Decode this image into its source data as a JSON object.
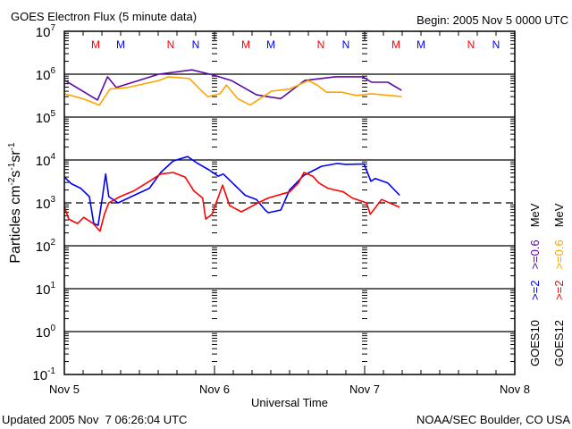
{
  "header": {
    "title": "GOES Electron Flux (5 minute data)",
    "begin": "Begin: 2005 Nov 5 0000 UTC"
  },
  "footer": {
    "updated": "Updated 2005 Nov  7 06:26:04 UTC",
    "source": "NOAA/SEC Boulder, CO USA"
  },
  "legend": {
    "goes10": {
      "sat": "GOES10",
      "e2": ">=2",
      "e06": ">=0.6",
      "unit": "MeV"
    },
    "goes12": {
      "sat": "GOES12",
      "e2": ">=2",
      "e06": ">=0.6",
      "unit": "MeV"
    }
  },
  "colors": {
    "goes10_2": "#0000ff",
    "goes10_06": "#5a0aa8",
    "goes12_2": "#ff0000",
    "goes12_06": "#ffa500"
  },
  "chart_data": {
    "type": "line",
    "title": "GOES Electron Flux (5 minute data)",
    "xlabel": "Universal Time",
    "ylabel": "Particles cm-2s-1sr-1",
    "ylabel_parts": {
      "a": "Particles cm",
      "b": "-2",
      "c": "s",
      "d": "-1",
      "e": "sr",
      "f": "-1"
    },
    "x_unit": "hours since 2005 Nov 5 0000 UTC",
    "xlim": [
      0,
      72
    ],
    "ylim": [
      0.1,
      10000000
    ],
    "yscale": "log",
    "x_ticks": [
      {
        "h": 0,
        "label": "Nov 5"
      },
      {
        "h": 24,
        "label": "Nov 6"
      },
      {
        "h": 48,
        "label": "Nov 7"
      },
      {
        "h": 72,
        "label": "Nov 8"
      }
    ],
    "y_tick_exponents": [
      "7",
      "6",
      "5",
      "4",
      "3",
      "2",
      "1",
      "0",
      "-1"
    ],
    "threshold_line": 1000,
    "markers": [
      {
        "h": 5,
        "label": "M",
        "color": "#ff0000"
      },
      {
        "h": 9,
        "label": "M",
        "color": "#0000ff"
      },
      {
        "h": 17,
        "label": "N",
        "color": "#ff0000"
      },
      {
        "h": 21,
        "label": "N",
        "color": "#0000ff"
      },
      {
        "h": 29,
        "label": "M",
        "color": "#ff0000"
      },
      {
        "h": 33,
        "label": "M",
        "color": "#0000ff"
      },
      {
        "h": 41,
        "label": "N",
        "color": "#ff0000"
      },
      {
        "h": 45,
        "label": "N",
        "color": "#0000ff"
      },
      {
        "h": 53,
        "label": "M",
        "color": "#ff0000"
      },
      {
        "h": 57,
        "label": "M",
        "color": "#0000ff"
      },
      {
        "h": 65,
        "label": "N",
        "color": "#ff0000"
      },
      {
        "h": 69,
        "label": "N",
        "color": "#0000ff"
      }
    ],
    "series": [
      {
        "name": "GOES10 >=0.6 MeV",
        "color": "#5a0aa8",
        "x": [
          0.1,
          5.3,
          6.9,
          8.3,
          15.1,
          20.4,
          23.9,
          26.7,
          30.7,
          33.1,
          34.6,
          38.4,
          43.3,
          47.7,
          49.1,
          51.7,
          53.9
        ],
        "y": [
          710000,
          250000,
          870000,
          490000,
          1000000,
          1260000,
          950000,
          710000,
          330000,
          290000,
          270000,
          710000,
          870000,
          870000,
          650000,
          650000,
          420000
        ]
      },
      {
        "name": "GOES12 >=0.6 MeV",
        "color": "#ffa500",
        "x": [
          0,
          2.9,
          5.6,
          7.3,
          10.1,
          15.1,
          16.6,
          20,
          21.4,
          22.9,
          24.9,
          25.9,
          27.7,
          29.7,
          33.1,
          36,
          39,
          40.4,
          41.9,
          44.3,
          46.7,
          49.1,
          53.9
        ],
        "y": [
          350000,
          270000,
          190000,
          450000,
          490000,
          710000,
          870000,
          790000,
          490000,
          300000,
          350000,
          560000,
          270000,
          190000,
          400000,
          450000,
          710000,
          560000,
          380000,
          380000,
          320000,
          350000,
          300000
        ]
      },
      {
        "name": "GOES10 >=2 MeV",
        "color": "#0000ff",
        "x": [
          0,
          1.1,
          2.6,
          4,
          4.7,
          5.4,
          6.1,
          6.6,
          7.1,
          8.6,
          10.7,
          13.6,
          15.4,
          17.4,
          19.7,
          21.1,
          23.1,
          24.6,
          25.4,
          26.9,
          28.9,
          30.7,
          32.1,
          32.6,
          34.6,
          36,
          38.3,
          41.1,
          43.6,
          45,
          47.9,
          49,
          49.7,
          51.7,
          53.6
        ],
        "y": [
          4000,
          2800,
          2200,
          1400,
          330,
          300,
          1400,
          4700,
          1400,
          1000,
          1400,
          2200,
          5100,
          9500,
          12000,
          8700,
          5900,
          4200,
          4700,
          2900,
          1500,
          1200,
          680,
          590,
          680,
          2000,
          4400,
          7100,
          8300,
          7900,
          8100,
          3200,
          3700,
          2900,
          1500
        ]
      },
      {
        "name": "GOES12 >=2 MeV",
        "color": "#ff0000",
        "x": [
          0,
          0.7,
          2.1,
          3.1,
          4.6,
          5.7,
          6.4,
          7.1,
          8.9,
          11.1,
          13.6,
          15.4,
          17.4,
          19.3,
          20.7,
          22.1,
          22.6,
          23.6,
          25.3,
          26.4,
          28.3,
          30.7,
          32.6,
          36,
          37.4,
          38.3,
          39.7,
          40.7,
          42.1,
          44.6,
          46,
          48.3,
          48.9,
          50.7,
          53.6
        ],
        "y": [
          830,
          420,
          330,
          460,
          330,
          220,
          540,
          1000,
          1400,
          1900,
          3200,
          4700,
          5100,
          4000,
          1900,
          1300,
          420,
          540,
          2600,
          870,
          620,
          960,
          1300,
          1800,
          2900,
          5100,
          4200,
          2900,
          2200,
          1800,
          1300,
          1000,
          540,
          1200,
          790
        ]
      }
    ]
  }
}
